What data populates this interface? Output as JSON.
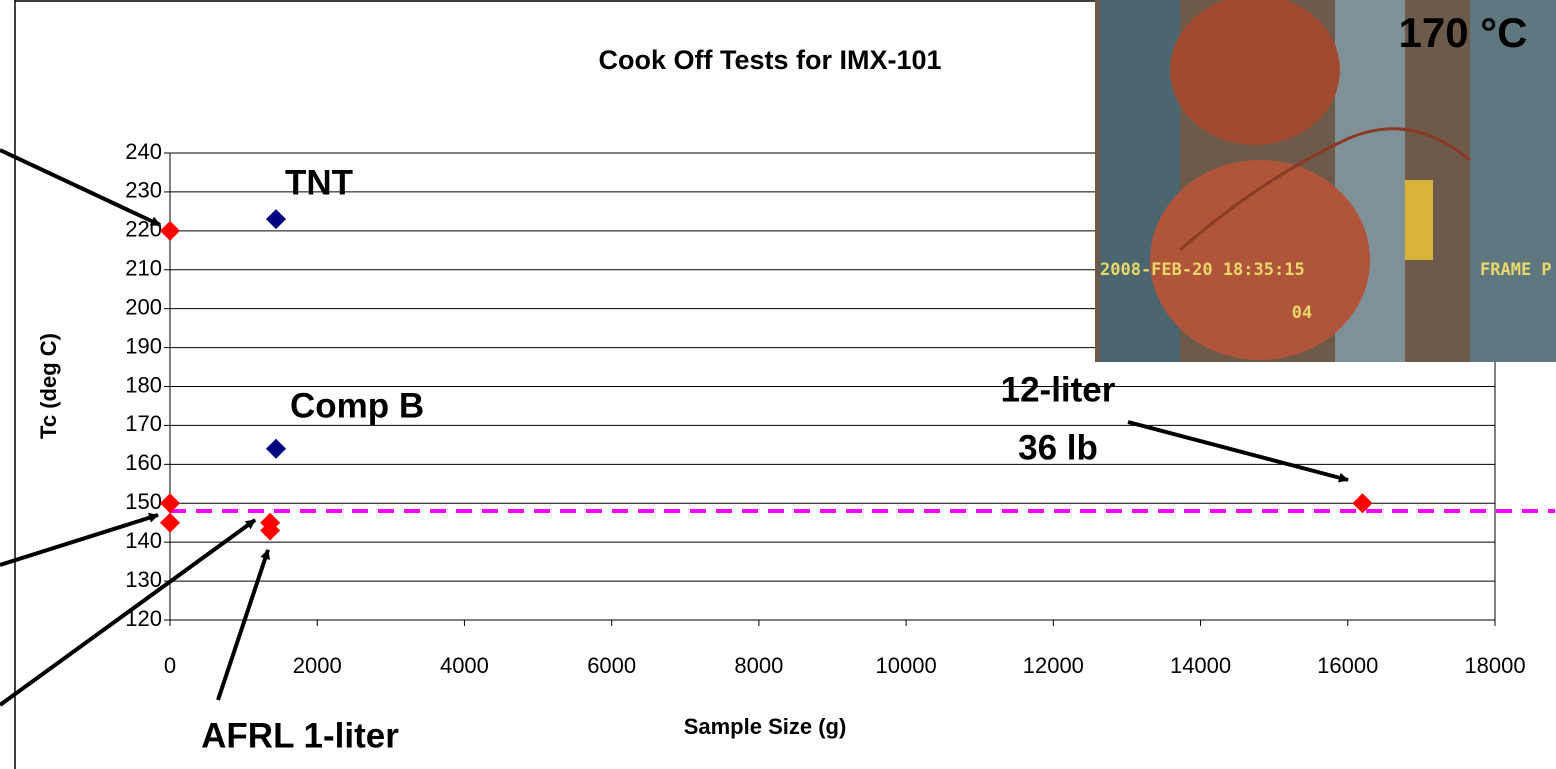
{
  "chart_data": {
    "type": "scatter",
    "title": "Cook Off Tests for IMX-101",
    "x_label": "Sample Size (g)",
    "y_label": "Tc (deg C)",
    "xlim": [
      0,
      18000
    ],
    "xticks": [
      0,
      2000,
      4000,
      6000,
      8000,
      10000,
      12000,
      14000,
      16000,
      18000
    ],
    "ylim": [
      120,
      240
    ],
    "yticks": [
      120,
      130,
      140,
      150,
      160,
      170,
      180,
      190,
      200,
      210,
      220,
      230,
      240
    ],
    "grid": true,
    "series": [
      {
        "color": "#ff0000",
        "x": [
          0,
          0,
          0,
          1360,
          1360,
          16200
        ],
        "values": [
          220,
          150,
          145,
          145,
          143,
          150
        ]
      },
      {
        "color": "#000080",
        "x": [
          1440,
          1440
        ],
        "values": [
          223,
          164
        ]
      }
    ],
    "reference_line": {
      "value": 148,
      "color": "#ff00ff"
    },
    "annotations": [
      "TNT",
      "Comp B",
      "12-liter",
      "36 lb",
      "AFRL 1-liter",
      "170 °C"
    ],
    "photo_overlay": [
      "2008-FEB-20 18:35:15",
      "FRAME P",
      "04"
    ]
  }
}
